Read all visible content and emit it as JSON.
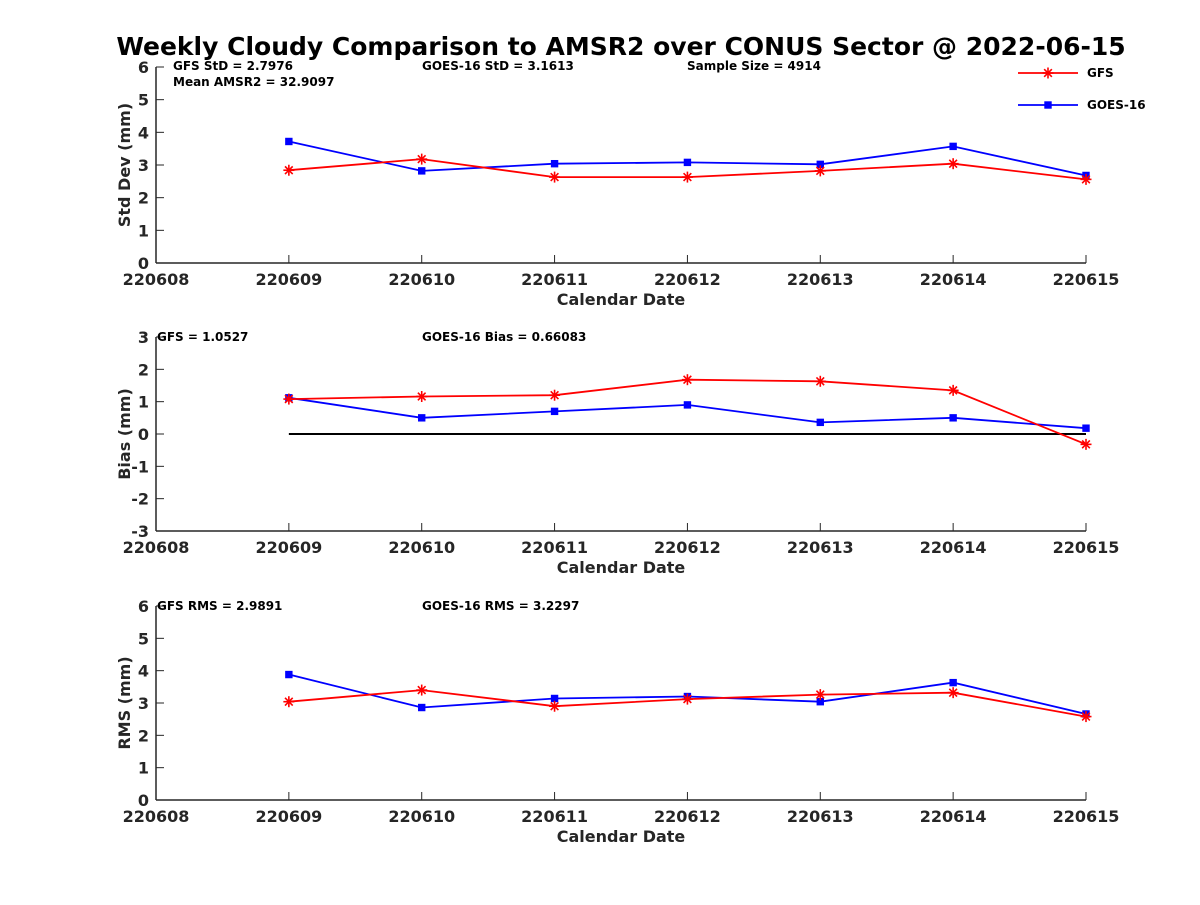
{
  "title": "Weekly Cloudy Comparison to AMSR2 over CONUS Sector @ 2022-06-15",
  "legend": {
    "position": "top-right",
    "entries": [
      {
        "label": "GFS",
        "color": "#ff0000",
        "marker": "asterisk"
      },
      {
        "label": "GOES-16",
        "color": "#0000ff",
        "marker": "square"
      }
    ]
  },
  "chart_data": [
    {
      "type": "line",
      "xlabel": "Calendar Date",
      "ylabel": "Std Dev (mm)",
      "xlim": [
        220608,
        220615
      ],
      "ylim": [
        0,
        6
      ],
      "xticks": [
        "220608",
        "220609",
        "220610",
        "220611",
        "220612",
        "220613",
        "220614",
        "220615"
      ],
      "yticks": [
        "0",
        "1",
        "2",
        "3",
        "4",
        "5",
        "6"
      ],
      "x": [
        220609,
        220610,
        220611,
        220612,
        220613,
        220614,
        220615
      ],
      "annotations": [
        "GFS StD = 2.7976",
        "Mean AMSR2 = 32.9097",
        "GOES-16 StD = 3.1613",
        "Sample Size = 4914"
      ],
      "zero_line": false,
      "series": [
        {
          "name": "GFS",
          "color": "#ff0000",
          "marker": "asterisk",
          "values": [
            2.84,
            3.18,
            2.63,
            2.63,
            2.82,
            3.04,
            2.56
          ]
        },
        {
          "name": "GOES-16",
          "color": "#0000ff",
          "marker": "square",
          "values": [
            3.72,
            2.82,
            3.04,
            3.08,
            3.02,
            3.57,
            2.68
          ]
        }
      ]
    },
    {
      "type": "line",
      "xlabel": "Calendar Date",
      "ylabel": "Bias (mm)",
      "xlim": [
        220608,
        220615
      ],
      "ylim": [
        -3,
        3
      ],
      "xticks": [
        "220608",
        "220609",
        "220610",
        "220611",
        "220612",
        "220613",
        "220614",
        "220615"
      ],
      "yticks": [
        "-3",
        "-2",
        "-1",
        "0",
        "1",
        "2",
        "3"
      ],
      "x": [
        220609,
        220610,
        220611,
        220612,
        220613,
        220614,
        220615
      ],
      "annotations": [
        "GFS = 1.0527",
        "GOES-16 Bias  = 0.66083"
      ],
      "zero_line": true,
      "series": [
        {
          "name": "GFS",
          "color": "#ff0000",
          "marker": "asterisk",
          "values": [
            1.08,
            1.16,
            1.2,
            1.68,
            1.63,
            1.35,
            -0.32
          ]
        },
        {
          "name": "GOES-16",
          "color": "#0000ff",
          "marker": "square",
          "values": [
            1.12,
            0.5,
            0.7,
            0.9,
            0.36,
            0.5,
            0.18
          ]
        }
      ]
    },
    {
      "type": "line",
      "xlabel": "Calendar Date",
      "ylabel": "RMS (mm)",
      "xlim": [
        220608,
        220615
      ],
      "ylim": [
        0,
        6
      ],
      "xticks": [
        "220608",
        "220609",
        "220610",
        "220611",
        "220612",
        "220613",
        "220614",
        "220615"
      ],
      "yticks": [
        "0",
        "1",
        "2",
        "3",
        "4",
        "5",
        "6"
      ],
      "x": [
        220609,
        220610,
        220611,
        220612,
        220613,
        220614,
        220615
      ],
      "annotations": [
        "GFS RMS = 2.9891",
        "GOES-16 RMS = 3.2297"
      ],
      "zero_line": false,
      "series": [
        {
          "name": "GFS",
          "color": "#ff0000",
          "marker": "asterisk",
          "values": [
            3.04,
            3.4,
            2.9,
            3.12,
            3.26,
            3.32,
            2.58
          ]
        },
        {
          "name": "GOES-16",
          "color": "#0000ff",
          "marker": "square",
          "values": [
            3.88,
            2.86,
            3.14,
            3.2,
            3.04,
            3.63,
            2.66
          ]
        }
      ]
    }
  ]
}
